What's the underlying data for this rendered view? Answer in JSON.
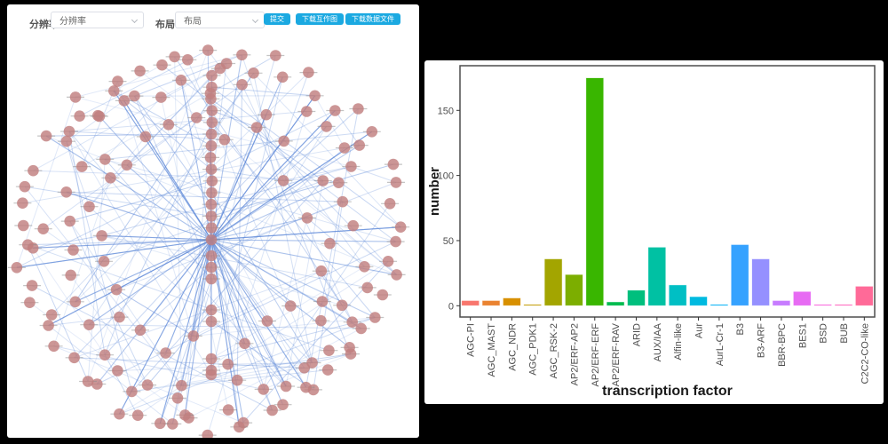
{
  "window": {
    "background": "#000000"
  },
  "left_panel": {
    "toolbar": {
      "resolution_label": "分辨率",
      "resolution_value": "分辨率",
      "layout_label": "布局",
      "layout_value": "布局",
      "submit_label": "提交",
      "download_graph_label": "下载互作图",
      "download_data_label": "下载数据文件",
      "button_color": "#1ba9e1"
    },
    "network": {
      "node_color": "#c17f7f",
      "node_label_stroke": "#8a8a8a",
      "edge_color": "#5b87d8",
      "seed": 42,
      "column_nodes_above_hub": 14,
      "below_column_y": [
        251,
        264,
        277,
        312,
        325,
        367,
        380
      ],
      "periphery_rings": [
        [
          60,
          196,
          26
        ],
        [
          34,
          150,
          40
        ],
        [
          26,
          98,
          46
        ]
      ]
    }
  },
  "chart_data": {
    "type": "bar",
    "title": "",
    "xlabel": "transcription factor",
    "ylabel": "number",
    "categories": [
      "AGC-PI",
      "AGC_MAST",
      "AGC_NDR",
      "AGC_PDK1",
      "AGC_RSK-2",
      "AP2/ERF-AP2",
      "AP2/ERF-ERF",
      "AP2/ERF-RAV",
      "ARID",
      "AUX/IAA",
      "Alfin-like",
      "Aur",
      "AurL-Cr-1",
      "B3",
      "B3-ARF",
      "BBR-BPC",
      "BES1",
      "BSD",
      "BUB",
      "C2C2-CO-like"
    ],
    "values": [
      4,
      4,
      6,
      1,
      36,
      24,
      175,
      3,
      12,
      45,
      16,
      7,
      1,
      47,
      36,
      4,
      11,
      1,
      1,
      15
    ],
    "colors": [
      "#F8766D",
      "#EA8331",
      "#D89000",
      "#C09B00",
      "#A3A500",
      "#7CAE00",
      "#39B600",
      "#00BB4E",
      "#00BF7D",
      "#00C1A3",
      "#00BFC4",
      "#00BAE0",
      "#00B0F6",
      "#35A2FF",
      "#9590FF",
      "#C77CFF",
      "#E76BF3",
      "#FA62DB",
      "#FF62BC",
      "#FF6A98"
    ],
    "yticks": [
      0,
      50,
      100,
      150
    ],
    "ylim": [
      -9,
      186
    ],
    "grid": false,
    "legend": "none",
    "axis_text_color": "#4d4d4d",
    "axis_title_color": "#1a1a1a",
    "panel_border_color": "#4d4d4d"
  }
}
